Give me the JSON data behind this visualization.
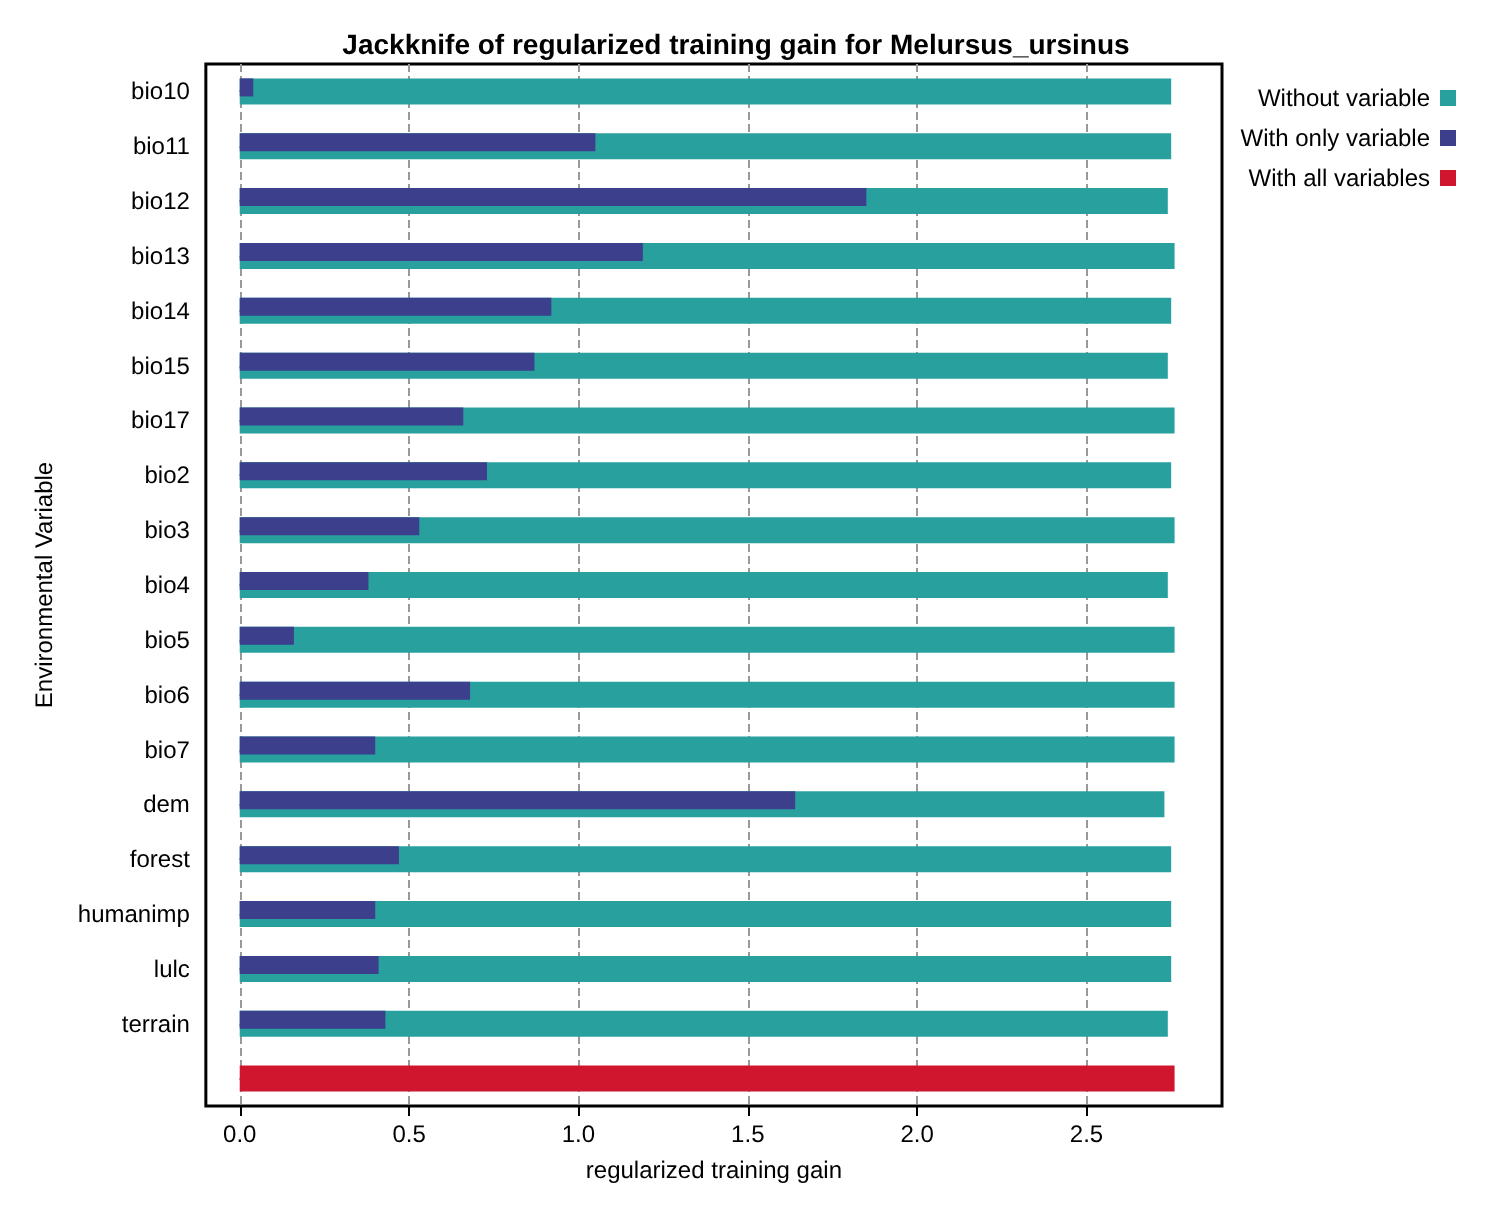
{
  "chart_data": {
    "type": "bar",
    "orientation": "horizontal",
    "title": "Jackknife of regularized training gain for Melursus_ursinus",
    "xlabel": "regularized training gain",
    "ylabel": "Environmental Variable",
    "categories": [
      "bio10",
      "bio11",
      "bio12",
      "bio13",
      "bio14",
      "bio15",
      "bio17",
      "bio2",
      "bio3",
      "bio4",
      "bio5",
      "bio6",
      "bio7",
      "dem",
      "forest",
      "humanimp",
      "lulc",
      "terrain",
      null
    ],
    "series": [
      {
        "name": "Without variable",
        "color": "#27a09e",
        "values": [
          2.75,
          2.75,
          2.74,
          2.76,
          2.75,
          2.74,
          2.76,
          2.75,
          2.76,
          2.74,
          2.76,
          2.76,
          2.76,
          2.73,
          2.75,
          2.75,
          2.75,
          2.74,
          null
        ]
      },
      {
        "name": "With only variable",
        "color": "#3b3f8c",
        "values": [
          0.04,
          1.05,
          1.85,
          1.19,
          0.92,
          0.87,
          0.66,
          0.73,
          0.53,
          0.38,
          0.16,
          0.68,
          0.4,
          1.64,
          0.47,
          0.4,
          0.41,
          0.43,
          null
        ]
      },
      {
        "name": "With all variables",
        "color": "#d0152e",
        "values": [
          null,
          null,
          null,
          null,
          null,
          null,
          null,
          null,
          null,
          null,
          null,
          null,
          null,
          null,
          null,
          null,
          null,
          null,
          2.76
        ]
      }
    ],
    "xlim": [
      -0.1,
      2.9
    ],
    "xticks": [
      {
        "value": 0,
        "label": "0.0"
      },
      0.5,
      {
        "value": 1,
        "label": "1.0"
      },
      1.5,
      {
        "value": 2,
        "label": "2.0"
      },
      2.5
    ],
    "grid": "x",
    "legend": "top right"
  }
}
